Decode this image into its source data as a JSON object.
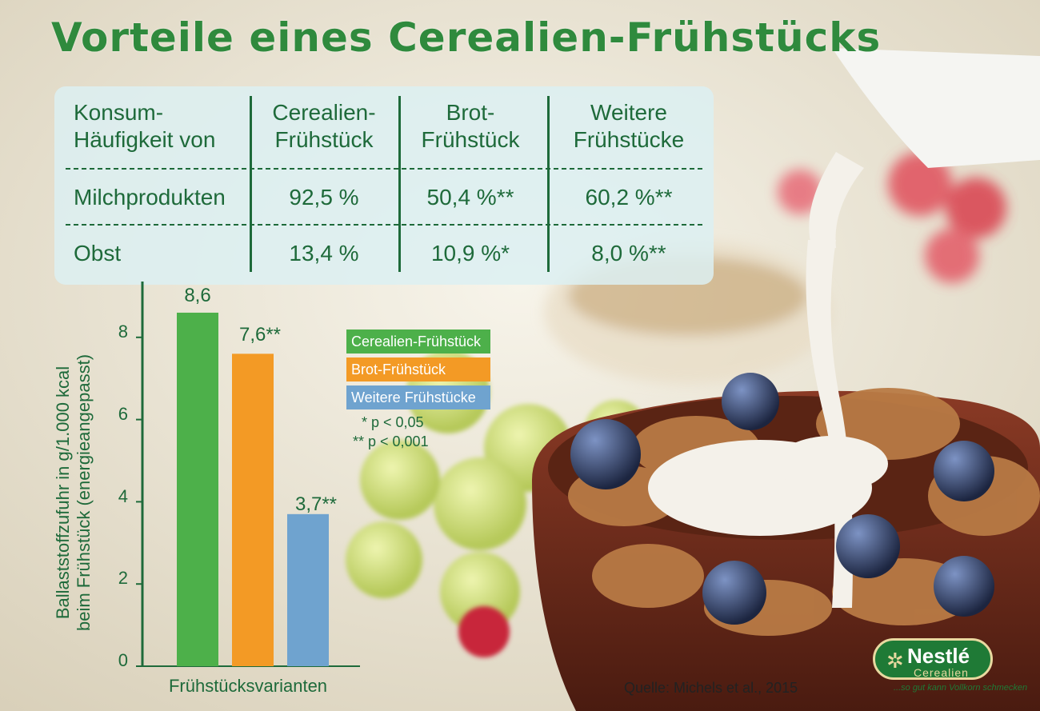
{
  "title": "Vorteile eines Cerealien-Frühstücks",
  "table": {
    "headers": [
      [
        "Konsum-",
        "Häufigkeit von"
      ],
      [
        "Cerealien-",
        "Frühstück"
      ],
      [
        "Brot-",
        "Frühstück"
      ],
      [
        "Weitere",
        "Frühstücke"
      ]
    ],
    "rows": [
      {
        "label": "Milchprodukten",
        "values": [
          "92,5 %",
          "50,4 %**",
          "60,2 %**"
        ]
      },
      {
        "label": "Obst",
        "values": [
          "13,4 %",
          "10,9 %*",
          "8,0 %**"
        ]
      }
    ]
  },
  "chart_data": {
    "type": "bar",
    "categories": [
      "Cerealien-Frühstück",
      "Brot-Frühstück",
      "Weitere Frühstücke"
    ],
    "values": [
      8.6,
      7.6,
      3.7
    ],
    "value_labels": [
      "8,6",
      "7,6**",
      "3,7**"
    ],
    "colors": [
      "#4db04a",
      "#f39a25",
      "#6fa3cf"
    ],
    "ylabel": "Ballaststoffzufuhr in g/1.000 kcal beim Frühstück (energieangepasst)",
    "ylabel_lines": [
      "Ballaststoffzufuhr in g/1.000 kcal",
      "beim Frühstück (energieangepasst)"
    ],
    "xlabel": "Frühstücksvarianten",
    "yticks": [
      "0",
      "2",
      "4",
      "6",
      "8"
    ],
    "ylim": [
      0,
      9.5
    ],
    "legend": [
      "Cerealien-Frühstück",
      "Brot-Frühstück",
      "Weitere Frühstücke"
    ],
    "legend_position": "right",
    "notes": [
      "* p < 0,05",
      "** p < 0,001"
    ],
    "grid": false
  },
  "source": "Quelle: Michels et al., 2015",
  "logo": {
    "name": "Nestlé",
    "sub": "Cerealien",
    "slogan": "...so gut kann Vollkorn schmecken"
  }
}
